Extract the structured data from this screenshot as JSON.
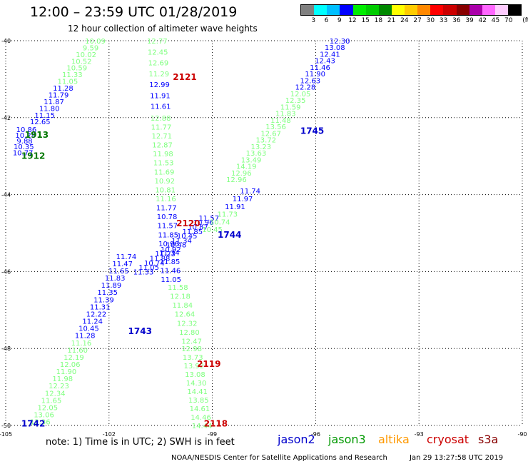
{
  "header": {
    "title": "12:00 – 23:59 UTC 01/28/2019",
    "subtitle": "12 hour collection of altimeter wave heights"
  },
  "color_scale": {
    "unit": "(ft)",
    "colors": [
      "#808080",
      "#00ffff",
      "#00bfff",
      "#0000ff",
      "#00ee00",
      "#00cc00",
      "#008800",
      "#ffff00",
      "#ffcc00",
      "#ff8800",
      "#ff0000",
      "#cc0000",
      "#880000",
      "#aa00aa",
      "#ff66ff",
      "#ffccff",
      "#000000"
    ],
    "labels": [
      "3",
      "6",
      "9",
      "12",
      "15",
      "18",
      "21",
      "24",
      "27",
      "30",
      "33",
      "36",
      "39",
      "42",
      "45",
      "70"
    ]
  },
  "axes": {
    "lon_ticks": [
      "-105",
      "-102",
      "-99",
      "-96",
      "-93",
      "-90"
    ],
    "lat_ticks": [
      "-40",
      "-42",
      "-44",
      "-46",
      "-48",
      "-50"
    ]
  },
  "tracks": [
    {
      "id": "1742",
      "satellite": "jason2",
      "colors": [
        "#7fff7f",
        "#0000ff"
      ],
      "label_color": "#0000cc",
      "label": "1742",
      "from": [
        -104.0,
        -49.9
      ],
      "to": [
        -101.5,
        -45.6
      ],
      "values": [
        "12.36",
        "13.06",
        "12.05",
        "11.65",
        "12.34",
        "12.23",
        "11.98",
        "11.90",
        "12.06",
        "12.19",
        "11.60",
        "11.16",
        "11.28",
        "10.45",
        "11.24",
        "12.22",
        "11.31",
        "11.39",
        "11.35",
        "11.89",
        "11.83",
        "11.65",
        "11.47",
        "11.74"
      ]
    },
    {
      "id": "1743",
      "satellite": "jason2",
      "colors": [
        "#0000ff",
        "#0000ff"
      ],
      "label_color": "#0000cc",
      "label": "1743",
      "from": [
        -101.0,
        -46.0
      ],
      "to": [
        -99.1,
        -44.6
      ],
      "values": [
        "11.33",
        "11.05",
        "10.74",
        "11.88",
        "11.23",
        "10.92",
        "10.48",
        "11.34",
        "10.45",
        "11.85",
        "10.87",
        "10.96",
        "11.57"
      ]
    },
    {
      "id": "1744",
      "satellite": "jason3",
      "colors": [
        "#7fff7f",
        "#0000ff"
      ],
      "label_color": "#0000cc",
      "label": "1744",
      "from": [
        -99.0,
        -44.9
      ],
      "to": [
        -97.9,
        -43.9
      ],
      "values": [
        "10.45",
        "10.74",
        "11.73",
        "11.91",
        "11.97",
        "11.74"
      ]
    },
    {
      "id": "1745",
      "satellite": "jason3",
      "colors": [
        "#7fff7f",
        "#7fff7f",
        "#0000ff"
      ],
      "label_color": "#0000cc",
      "label": "1745",
      "from": [
        -98.3,
        -43.6
      ],
      "to": [
        -95.3,
        -40.0
      ],
      "values": [
        "12.96",
        "12.96",
        "14.19",
        "13.49",
        "13.63",
        "13.23",
        "13.72",
        "12.67",
        "13.56",
        "11.48",
        "11.83",
        "11.59",
        "12.35",
        "12.05",
        "12.28",
        "12.63",
        "11.90",
        "11.46",
        "12.43",
        "12.41",
        "13.08",
        "12.30"
      ]
    },
    {
      "id": "1912",
      "satellite": "jason3",
      "colors": [
        "#0000ff"
      ],
      "label_color": "#007700",
      "label": "1912",
      "from": [
        -104.5,
        -42.9
      ],
      "to": [
        -104.4,
        -42.3
      ],
      "values": [
        "10.77",
        "10.35",
        "9.88",
        "10.28",
        "10.86"
      ]
    },
    {
      "id": "1913",
      "satellite": "jason3",
      "colors": [
        "#0000ff",
        "#7fff7f"
      ],
      "label_color": "#007700",
      "label": "1913",
      "from": [
        -104.0,
        -42.1
      ],
      "to": [
        -102.4,
        -40.0
      ],
      "values": [
        "12.65",
        "11.15",
        "11.80",
        "11.87",
        "11.79",
        "11.28",
        "11.05",
        "11.33",
        "10.59",
        "10.52",
        "10.02",
        "9.59",
        "10.09"
      ]
    },
    {
      "id": "2118",
      "satellite": "altika",
      "colors": [
        "#7fff7f"
      ],
      "label_color": "#cc0000",
      "label": "2118",
      "from": [
        -99.3,
        -50.0
      ],
      "to": [
        -99.6,
        -48.0
      ],
      "values": [
        "14.44",
        "14.46",
        "14.61",
        "13.85",
        "14.41",
        "14.30",
        "13.08",
        "13.92",
        "13.73",
        "12.98"
      ]
    },
    {
      "id": "2119",
      "satellite": "altika",
      "colors": [
        "#7fff7f"
      ],
      "label_color": "#cc0000",
      "label": "2119",
      "from": [
        -99.6,
        -47.8
      ],
      "to": [
        -100.0,
        -46.4
      ],
      "values": [
        "12.47",
        "12.80",
        "12.32",
        "12.64",
        "11.84",
        "12.18",
        "11.58"
      ]
    },
    {
      "id": "2120",
      "satellite": "altika",
      "colors": [
        "#0000ff",
        "#7fff7f"
      ],
      "label_color": "#cc0000",
      "label": "2120",
      "from": [
        -100.2,
        -46.2
      ],
      "to": [
        -100.5,
        -42.0
      ],
      "values": [
        "11.05",
        "11.46",
        "11.85",
        "11.34",
        "10.96",
        "11.85",
        "11.57",
        "10.78",
        "11.77",
        "11.16",
        "10.81",
        "10.92",
        "11.69",
        "11.53",
        "11.98",
        "12.87",
        "12.71",
        "11.77",
        "12.88"
      ]
    },
    {
      "id": "2121",
      "satellite": "altika",
      "colors": [
        "#0000ff",
        "#7fff7f"
      ],
      "label_color": "#cc0000",
      "label": "2121",
      "from": [
        -100.5,
        -41.7
      ],
      "to": [
        -100.6,
        -40.0
      ],
      "values": [
        "11.61",
        "11.91",
        "12.99",
        "11.29",
        "12.69",
        "12.45",
        "12.77"
      ]
    }
  ],
  "track_labels": [
    {
      "text": "1742",
      "color": "#0000cc",
      "lon": -104.2,
      "lat": -49.95
    },
    {
      "text": "1743",
      "color": "#0000cc",
      "lon": -101.1,
      "lat": -47.55
    },
    {
      "text": "1744",
      "color": "#0000cc",
      "lon": -98.5,
      "lat": -45.05
    },
    {
      "text": "1745",
      "color": "#0000cc",
      "lon": -96.1,
      "lat": -42.35
    },
    {
      "text": "1912",
      "color": "#007700",
      "lon": -104.2,
      "lat": -43.0
    },
    {
      "text": "1913",
      "color": "#007700",
      "lon": -104.1,
      "lat": -42.45
    },
    {
      "text": "2118",
      "color": "#cc0000",
      "lon": -98.9,
      "lat": -49.95
    },
    {
      "text": "2119",
      "color": "#cc0000",
      "lon": -99.1,
      "lat": -48.4
    },
    {
      "text": "2120",
      "color": "#cc0000",
      "lon": -99.7,
      "lat": -44.75
    },
    {
      "text": "2121",
      "color": "#cc0000",
      "lon": -99.8,
      "lat": -40.95
    }
  ],
  "note": "note:  1) Time is in UTC;  2) SWH is in feet",
  "satellites": [
    {
      "name": "jason2",
      "color": "#0000cc"
    },
    {
      "name": "jason3",
      "color": "#009900"
    },
    {
      "name": "altika",
      "color": "#ff9900"
    },
    {
      "name": "cryosat",
      "color": "#cc0000"
    },
    {
      "name": "s3a",
      "color": "#880000"
    }
  ],
  "footer": {
    "credit": "NOAA/NESDIS Center for Satellite Applications and Research",
    "timestamp": "Jan 29 13:27:58 UTC 2019"
  }
}
